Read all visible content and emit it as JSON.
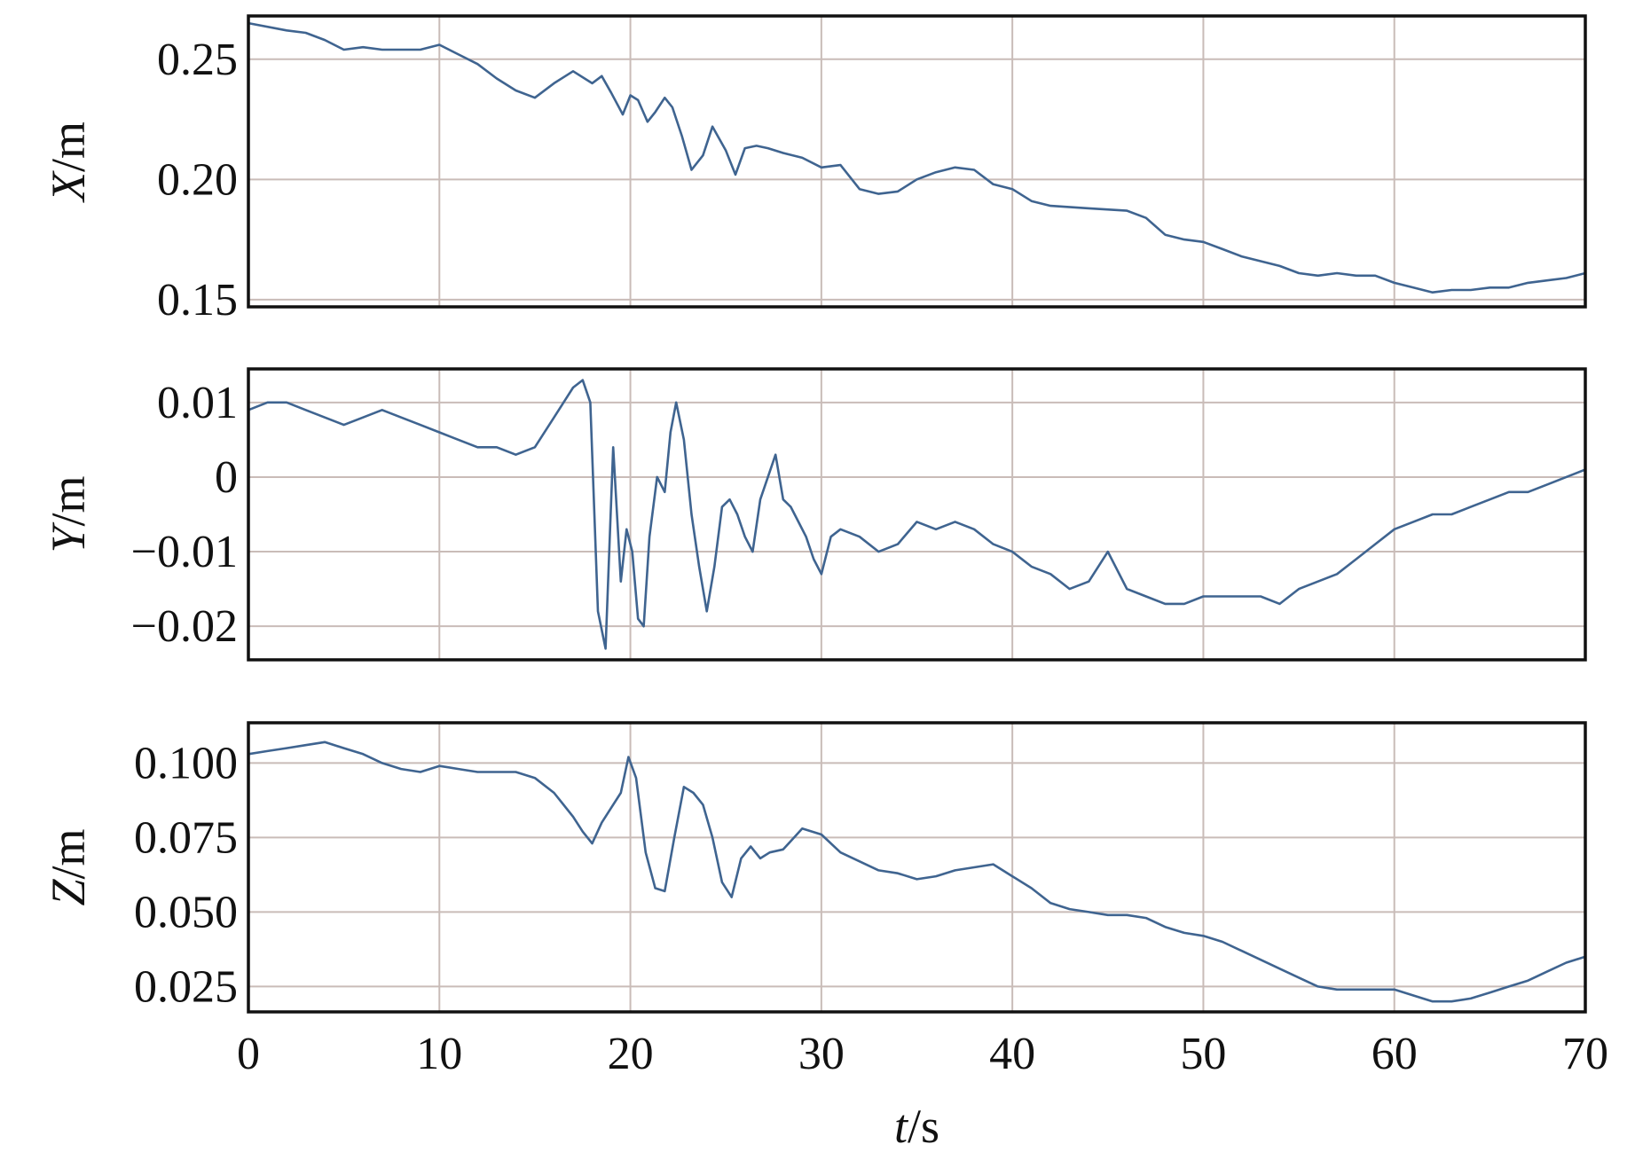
{
  "colors": {
    "series": "#3f6490",
    "grid": "#c9bcb8",
    "frame": "#111111"
  },
  "xlabel_var": "t",
  "xlabel_unit": "/s",
  "chart_data": [
    {
      "type": "line",
      "ylabel_var": "X",
      "ylabel_unit": "/m",
      "xlim": [
        0,
        70
      ],
      "ylim": [
        0.147,
        0.268
      ],
      "yticks": [
        0.15,
        0.2,
        0.25
      ],
      "ytick_labels": [
        "0.15",
        "0.20",
        "0.25"
      ],
      "xticks": [
        0,
        10,
        20,
        30,
        40,
        50,
        60,
        70
      ],
      "grid": true,
      "series": [
        {
          "x": [
            0,
            2,
            3,
            4,
            5,
            6,
            7,
            8,
            9,
            10,
            11,
            12,
            13,
            14,
            15,
            16,
            17,
            18,
            18.5,
            19,
            19.6,
            20,
            20.4,
            20.9,
            21.3,
            21.8,
            22.2,
            22.7,
            23.2,
            23.8,
            24.3,
            25,
            25.5,
            26,
            26.6,
            27.2,
            28,
            29,
            30,
            31,
            32,
            33,
            34,
            35,
            36,
            37,
            38,
            39,
            40,
            41,
            42,
            44,
            46,
            47,
            48,
            49,
            50,
            51,
            52,
            53,
            54,
            55,
            56,
            57,
            58,
            59,
            60,
            61,
            62,
            63,
            64,
            65,
            66,
            67,
            68,
            69,
            70
          ],
          "y": [
            0.265,
            0.262,
            0.261,
            0.258,
            0.254,
            0.255,
            0.254,
            0.254,
            0.254,
            0.256,
            0.252,
            0.248,
            0.242,
            0.237,
            0.234,
            0.24,
            0.245,
            0.24,
            0.243,
            0.236,
            0.227,
            0.235,
            0.233,
            0.224,
            0.228,
            0.234,
            0.23,
            0.218,
            0.204,
            0.21,
            0.222,
            0.212,
            0.202,
            0.213,
            0.214,
            0.213,
            0.211,
            0.209,
            0.205,
            0.206,
            0.196,
            0.194,
            0.195,
            0.2,
            0.203,
            0.205,
            0.204,
            0.198,
            0.196,
            0.191,
            0.189,
            0.188,
            0.187,
            0.184,
            0.177,
            0.175,
            0.174,
            0.171,
            0.168,
            0.166,
            0.164,
            0.161,
            0.16,
            0.161,
            0.16,
            0.16,
            0.157,
            0.155,
            0.153,
            0.154,
            0.154,
            0.155,
            0.155,
            0.157,
            0.158,
            0.159,
            0.161
          ]
        }
      ]
    },
    {
      "type": "line",
      "ylabel_var": "Y",
      "ylabel_unit": "/m",
      "xlim": [
        0,
        70
      ],
      "ylim": [
        -0.0245,
        0.0145
      ],
      "yticks": [
        0.01,
        0,
        -0.01,
        -0.02
      ],
      "ytick_labels": [
        "0.01",
        "0",
        "−0.01",
        "−0.02"
      ],
      "xticks": [
        0,
        10,
        20,
        30,
        40,
        50,
        60,
        70
      ],
      "grid": true,
      "series": [
        {
          "x": [
            0,
            1,
            2,
            3,
            4,
            5,
            6,
            7,
            8,
            9,
            10,
            11,
            12,
            13,
            14,
            15,
            16,
            17,
            17.5,
            17.9,
            18.3,
            18.7,
            19.1,
            19.5,
            19.8,
            20.1,
            20.4,
            20.7,
            21.0,
            21.4,
            21.8,
            22.1,
            22.4,
            22.8,
            23.2,
            23.6,
            24.0,
            24.4,
            24.8,
            25.2,
            25.6,
            26.0,
            26.4,
            26.8,
            27.2,
            27.6,
            28.0,
            28.4,
            28.8,
            29.2,
            29.6,
            30.0,
            30.5,
            31,
            32,
            33,
            34,
            35,
            36,
            37,
            38,
            39,
            40,
            41,
            42,
            43,
            44,
            45,
            46,
            47,
            48,
            49,
            50,
            51,
            52,
            53,
            54,
            55,
            56,
            57,
            58,
            59,
            60,
            61,
            62,
            63,
            64,
            65,
            66,
            67,
            68,
            69,
            70
          ],
          "y": [
            0.009,
            0.01,
            0.01,
            0.009,
            0.008,
            0.007,
            0.008,
            0.009,
            0.008,
            0.007,
            0.006,
            0.005,
            0.004,
            0.004,
            0.003,
            0.004,
            0.008,
            0.012,
            0.013,
            0.01,
            -0.018,
            -0.023,
            0.004,
            -0.014,
            -0.007,
            -0.01,
            -0.019,
            -0.02,
            -0.008,
            0.0,
            -0.002,
            0.006,
            0.01,
            0.005,
            -0.005,
            -0.012,
            -0.018,
            -0.012,
            -0.004,
            -0.003,
            -0.005,
            -0.008,
            -0.01,
            -0.003,
            0.0,
            0.003,
            -0.003,
            -0.004,
            -0.006,
            -0.008,
            -0.011,
            -0.013,
            -0.008,
            -0.007,
            -0.008,
            -0.01,
            -0.009,
            -0.006,
            -0.007,
            -0.006,
            -0.007,
            -0.009,
            -0.01,
            -0.012,
            -0.013,
            -0.015,
            -0.014,
            -0.01,
            -0.015,
            -0.016,
            -0.017,
            -0.017,
            -0.016,
            -0.016,
            -0.016,
            -0.016,
            -0.017,
            -0.015,
            -0.014,
            -0.013,
            -0.011,
            -0.009,
            -0.007,
            -0.006,
            -0.005,
            -0.005,
            -0.004,
            -0.003,
            -0.002,
            -0.002,
            -0.001,
            -0.0,
            0.001
          ]
        }
      ]
    },
    {
      "type": "line",
      "ylabel_var": "Z",
      "ylabel_unit": "/m",
      "xlim": [
        0,
        70
      ],
      "ylim": [
        0.0165,
        0.1135
      ],
      "yticks": [
        0.1,
        0.075,
        0.05,
        0.025
      ],
      "ytick_labels": [
        "0.100",
        "0.075",
        "0.050",
        "0.025"
      ],
      "xticks": [
        0,
        10,
        20,
        30,
        40,
        50,
        60,
        70
      ],
      "grid": true,
      "series": [
        {
          "x": [
            0,
            1,
            2,
            3,
            4,
            5,
            6,
            7,
            8,
            9,
            10,
            11,
            12,
            13,
            14,
            15,
            16,
            17,
            17.5,
            18,
            18.5,
            19,
            19.5,
            19.9,
            20.3,
            20.8,
            21.3,
            21.8,
            22.3,
            22.8,
            23.3,
            23.8,
            24.3,
            24.8,
            25.3,
            25.8,
            26.3,
            26.8,
            27.3,
            28,
            29,
            30,
            31,
            32,
            33,
            34,
            35,
            36,
            37,
            38,
            39,
            40,
            41,
            42,
            43,
            44,
            45,
            46,
            47,
            48,
            49,
            50,
            51,
            52,
            53,
            54,
            55,
            56,
            57,
            58,
            59,
            60,
            61,
            62,
            63,
            64,
            65,
            66,
            67,
            68,
            69,
            70
          ],
          "y": [
            0.103,
            0.104,
            0.105,
            0.106,
            0.107,
            0.105,
            0.103,
            0.1,
            0.098,
            0.097,
            0.099,
            0.098,
            0.097,
            0.097,
            0.097,
            0.095,
            0.09,
            0.082,
            0.077,
            0.073,
            0.08,
            0.085,
            0.09,
            0.102,
            0.095,
            0.07,
            0.058,
            0.057,
            0.075,
            0.092,
            0.09,
            0.086,
            0.075,
            0.06,
            0.055,
            0.068,
            0.072,
            0.068,
            0.07,
            0.071,
            0.078,
            0.076,
            0.07,
            0.067,
            0.064,
            0.063,
            0.061,
            0.062,
            0.064,
            0.065,
            0.066,
            0.062,
            0.058,
            0.053,
            0.051,
            0.05,
            0.049,
            0.049,
            0.048,
            0.045,
            0.043,
            0.042,
            0.04,
            0.037,
            0.034,
            0.031,
            0.028,
            0.025,
            0.024,
            0.024,
            0.024,
            0.024,
            0.022,
            0.02,
            0.02,
            0.021,
            0.023,
            0.025,
            0.027,
            0.03,
            0.033,
            0.035
          ]
        }
      ]
    }
  ]
}
